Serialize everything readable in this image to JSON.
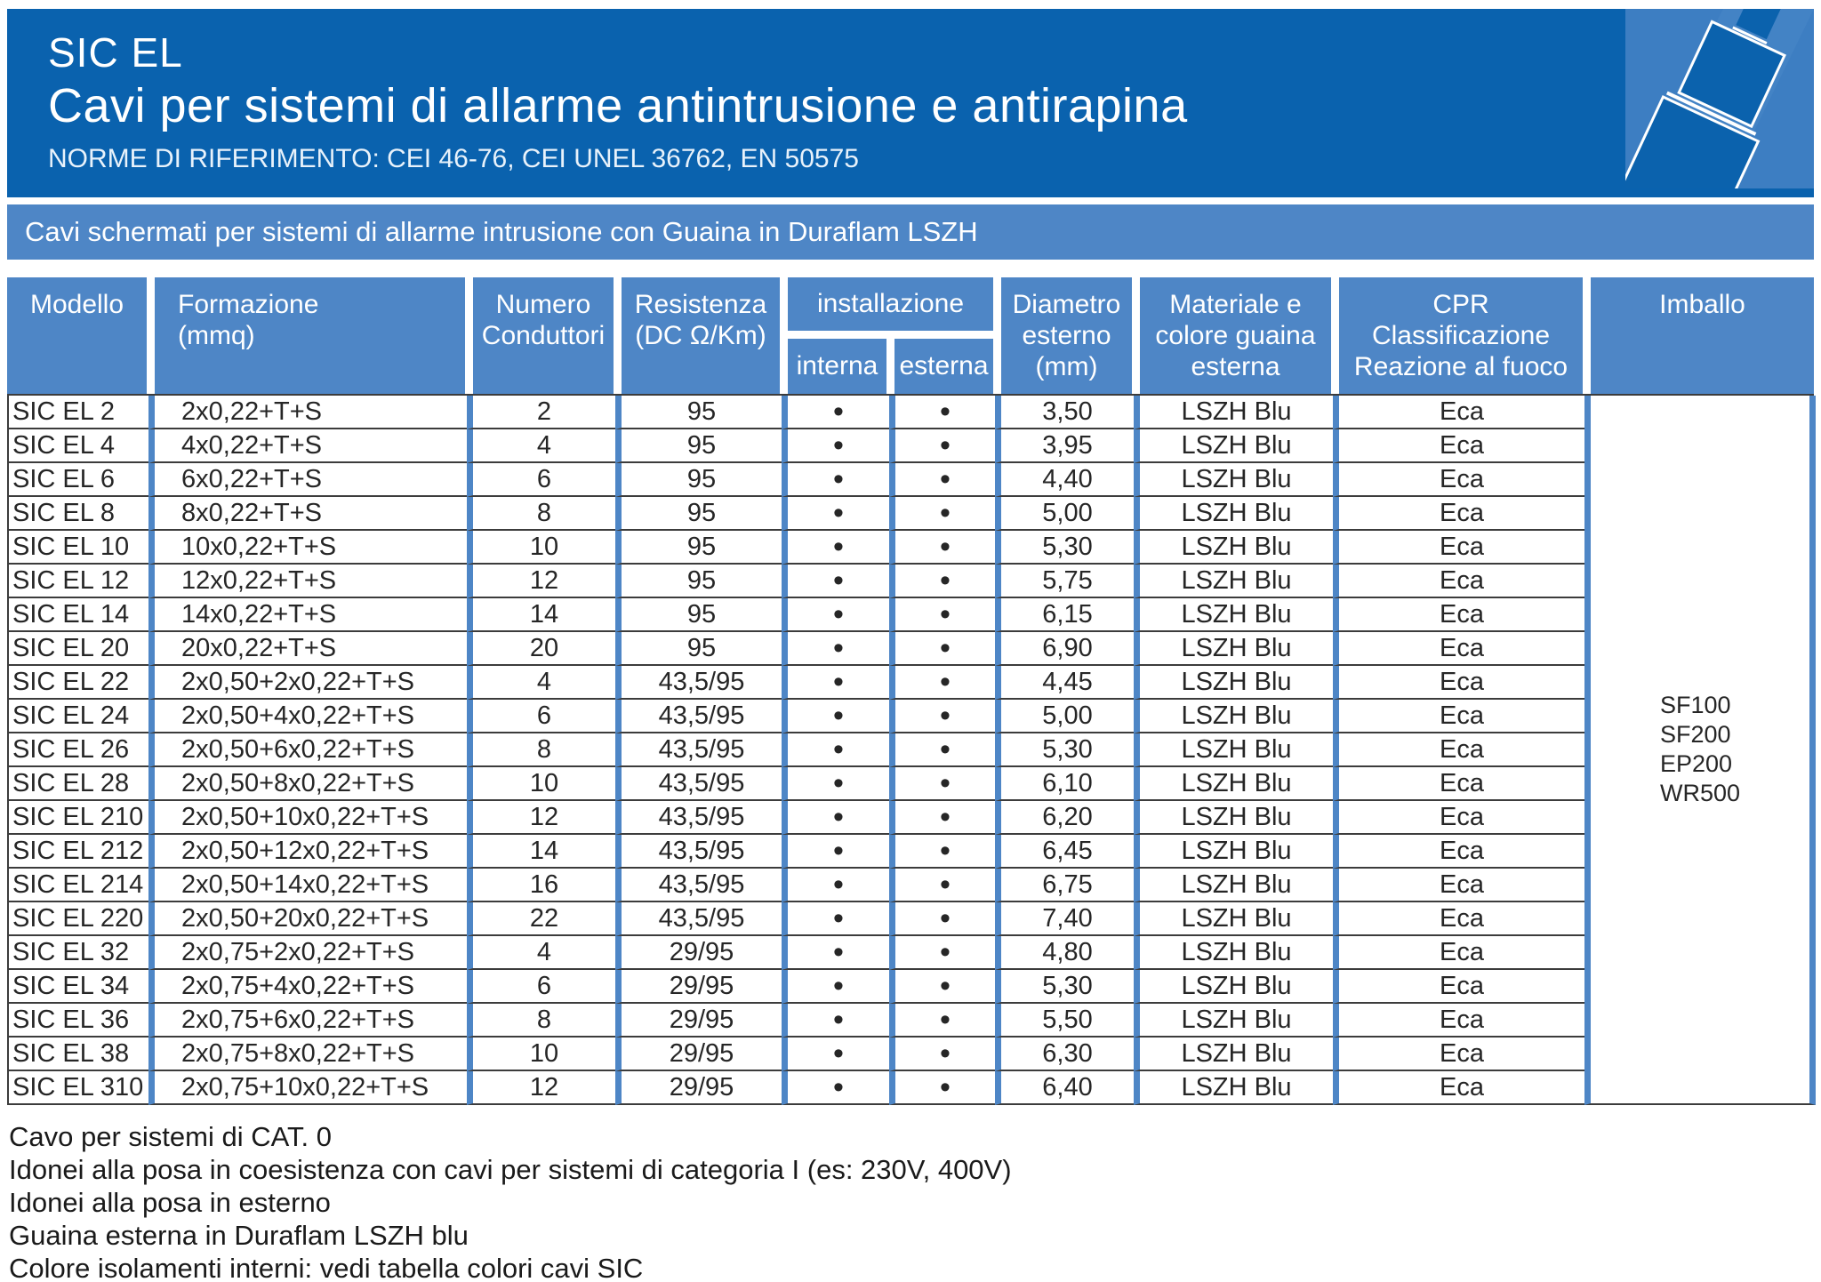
{
  "header": {
    "product": "SIC EL",
    "title": "Cavi per sistemi di allarme antintrusione e antirapina",
    "norms": "NORME DI RIFERIMENTO: CEI 46-76, CEI UNEL 36762, EN 50575"
  },
  "banner": {
    "text": "Cavi schermati per sistemi di allarme intrusione con Guaina in Duraflam LSZH"
  },
  "table": {
    "col_headers": {
      "modello": "Modello",
      "formazione": "Formazione\n(mmq)",
      "numero": "Numero\nConduttori",
      "resistenza": "Resistenza\n(DC Ω/Km)",
      "installazione": "installazione",
      "interna": "interna",
      "esterna": "esterna",
      "diametro": "Diametro\nesterno\n(mm)",
      "materiale": "Materiale e\ncolore guaina\nesterna",
      "cpr": "CPR\nClassificazione\nReazione al fuoco",
      "imballo": "Imballo"
    },
    "bullet": "•",
    "imballo_values": [
      "SF100",
      "SF200",
      "EP200",
      "WR500"
    ],
    "rows": [
      {
        "model": "SIC EL 2",
        "formation": "2x0,22+T+S",
        "conductors": "2",
        "resistance": "95",
        "interna": true,
        "esterna": true,
        "diameter": "3,50",
        "sheath": "LSZH Blu",
        "cpr": "Eca"
      },
      {
        "model": "SIC EL 4",
        "formation": "4x0,22+T+S",
        "conductors": "4",
        "resistance": "95",
        "interna": true,
        "esterna": true,
        "diameter": "3,95",
        "sheath": "LSZH Blu",
        "cpr": "Eca"
      },
      {
        "model": "SIC EL 6",
        "formation": "6x0,22+T+S",
        "conductors": "6",
        "resistance": "95",
        "interna": true,
        "esterna": true,
        "diameter": "4,40",
        "sheath": "LSZH Blu",
        "cpr": "Eca"
      },
      {
        "model": "SIC EL 8",
        "formation": "8x0,22+T+S",
        "conductors": "8",
        "resistance": "95",
        "interna": true,
        "esterna": true,
        "diameter": "5,00",
        "sheath": "LSZH Blu",
        "cpr": "Eca"
      },
      {
        "model": "SIC EL 10",
        "formation": "10x0,22+T+S",
        "conductors": "10",
        "resistance": "95",
        "interna": true,
        "esterna": true,
        "diameter": "5,30",
        "sheath": "LSZH Blu",
        "cpr": "Eca"
      },
      {
        "model": "SIC EL 12",
        "formation": "12x0,22+T+S",
        "conductors": "12",
        "resistance": "95",
        "interna": true,
        "esterna": true,
        "diameter": "5,75",
        "sheath": "LSZH Blu",
        "cpr": "Eca"
      },
      {
        "model": "SIC EL 14",
        "formation": "14x0,22+T+S",
        "conductors": "14",
        "resistance": "95",
        "interna": true,
        "esterna": true,
        "diameter": "6,15",
        "sheath": "LSZH Blu",
        "cpr": "Eca"
      },
      {
        "model": "SIC EL 20",
        "formation": "20x0,22+T+S",
        "conductors": "20",
        "resistance": "95",
        "interna": true,
        "esterna": true,
        "diameter": "6,90",
        "sheath": "LSZH Blu",
        "cpr": "Eca"
      },
      {
        "model": "SIC EL 22",
        "formation": "2x0,50+2x0,22+T+S",
        "conductors": "4",
        "resistance": "43,5/95",
        "interna": true,
        "esterna": true,
        "diameter": "4,45",
        "sheath": "LSZH Blu",
        "cpr": "Eca"
      },
      {
        "model": "SIC EL 24",
        "formation": "2x0,50+4x0,22+T+S",
        "conductors": "6",
        "resistance": "43,5/95",
        "interna": true,
        "esterna": true,
        "diameter": "5,00",
        "sheath": "LSZH Blu",
        "cpr": "Eca"
      },
      {
        "model": "SIC EL 26",
        "formation": "2x0,50+6x0,22+T+S",
        "conductors": "8",
        "resistance": "43,5/95",
        "interna": true,
        "esterna": true,
        "diameter": "5,30",
        "sheath": "LSZH Blu",
        "cpr": "Eca"
      },
      {
        "model": "SIC EL 28",
        "formation": "2x0,50+8x0,22+T+S",
        "conductors": "10",
        "resistance": "43,5/95",
        "interna": true,
        "esterna": true,
        "diameter": "6,10",
        "sheath": "LSZH Blu",
        "cpr": "Eca"
      },
      {
        "model": "SIC EL 210",
        "formation": "2x0,50+10x0,22+T+S",
        "conductors": "12",
        "resistance": "43,5/95",
        "interna": true,
        "esterna": true,
        "diameter": "6,20",
        "sheath": "LSZH Blu",
        "cpr": "Eca"
      },
      {
        "model": "SIC EL 212",
        "formation": "2x0,50+12x0,22+T+S",
        "conductors": "14",
        "resistance": "43,5/95",
        "interna": true,
        "esterna": true,
        "diameter": "6,45",
        "sheath": "LSZH Blu",
        "cpr": "Eca"
      },
      {
        "model": "SIC EL 214",
        "formation": "2x0,50+14x0,22+T+S",
        "conductors": "16",
        "resistance": "43,5/95",
        "interna": true,
        "esterna": true,
        "diameter": "6,75",
        "sheath": "LSZH Blu",
        "cpr": "Eca"
      },
      {
        "model": "SIC EL 220",
        "formation": "2x0,50+20x0,22+T+S",
        "conductors": "22",
        "resistance": "43,5/95",
        "interna": true,
        "esterna": true,
        "diameter": "7,40",
        "sheath": "LSZH Blu",
        "cpr": "Eca"
      },
      {
        "model": "SIC EL 32",
        "formation": "2x0,75+2x0,22+T+S",
        "conductors": "4",
        "resistance": "29/95",
        "interna": true,
        "esterna": true,
        "diameter": "4,80",
        "sheath": "LSZH Blu",
        "cpr": "Eca"
      },
      {
        "model": "SIC EL 34",
        "formation": "2x0,75+4x0,22+T+S",
        "conductors": "6",
        "resistance": "29/95",
        "interna": true,
        "esterna": true,
        "diameter": "5,30",
        "sheath": "LSZH Blu",
        "cpr": "Eca"
      },
      {
        "model": "SIC EL 36",
        "formation": "2x0,75+6x0,22+T+S",
        "conductors": "8",
        "resistance": "29/95",
        "interna": true,
        "esterna": true,
        "diameter": "5,50",
        "sheath": "LSZH Blu",
        "cpr": "Eca"
      },
      {
        "model": "SIC EL 38",
        "formation": "2x0,75+8x0,22+T+S",
        "conductors": "10",
        "resistance": "29/95",
        "interna": true,
        "esterna": true,
        "diameter": "6,30",
        "sheath": "LSZH Blu",
        "cpr": "Eca"
      },
      {
        "model": "SIC EL 310",
        "formation": "2x0,75+10x0,22+T+S",
        "conductors": "12",
        "resistance": "29/95",
        "interna": true,
        "esterna": true,
        "diameter": "6,40",
        "sheath": "LSZH Blu",
        "cpr": "Eca"
      }
    ]
  },
  "footnotes": [
    "Cavo per sistemi di CAT. 0",
    "Idonei alla posa in coesistenza con cavi per sistemi di categoria I (es: 230V, 400V)",
    "Idonei alla posa in esterno",
    "Guaina esterna in Duraflam LSZH blu",
    "Colore isolamenti interni: vedi tabella colori cavi SIC"
  ],
  "colors": {
    "header_blue": "#0a62ae",
    "panel_blue": "#4e86c6",
    "icon_bg_blue": "#3d7ec2",
    "grid_line": "#3c3c3c"
  }
}
